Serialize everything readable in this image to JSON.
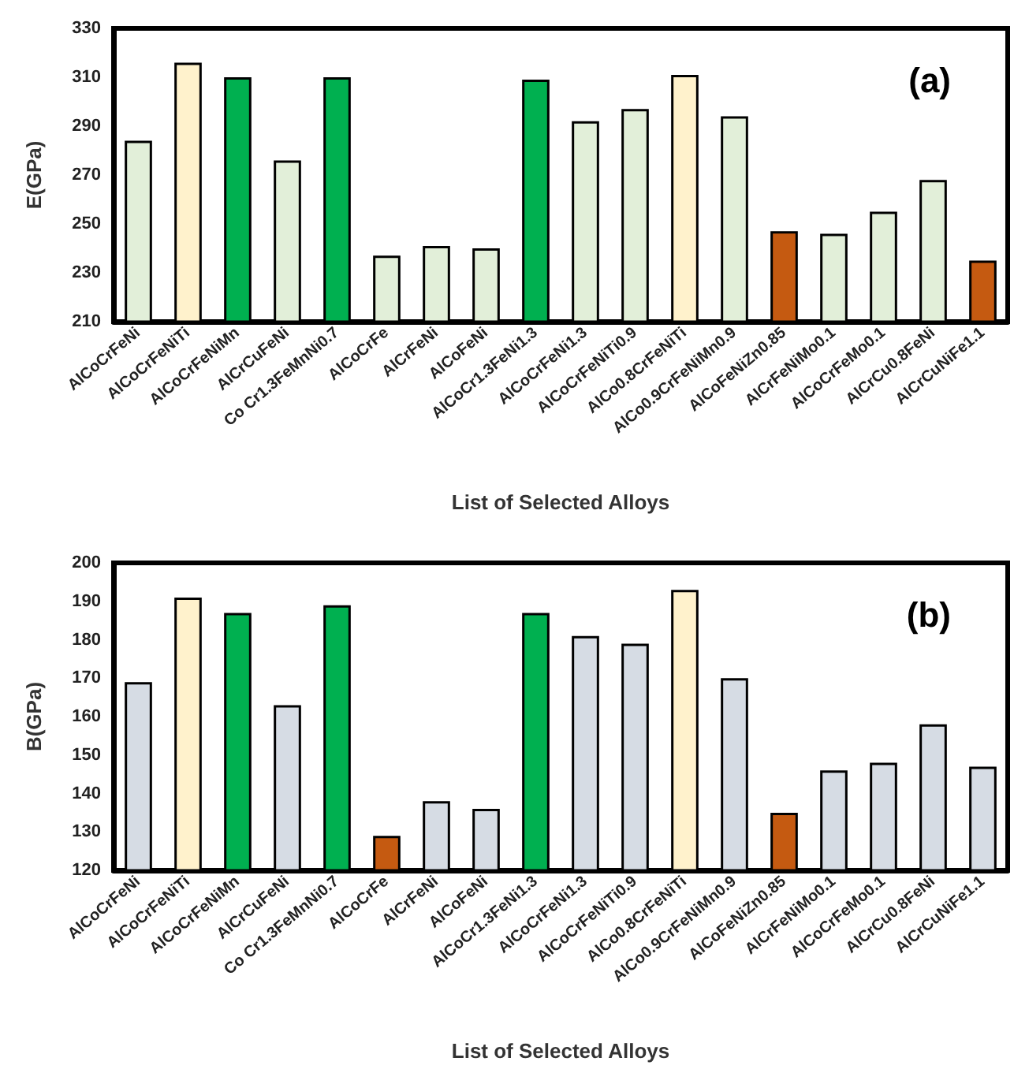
{
  "chart_data": [
    {
      "type": "bar",
      "xlabel": "List of Selected Alloys",
      "ylabel": "E(GPa)",
      "annotations": [
        "(a)"
      ],
      "categories": [
        "AlCoCrFeNi",
        "AlCoCrFeNiTi",
        "AlCoCrFeNiMn",
        "AlCrCuFeNi",
        "Co Cr1.3FeMnNi0.7",
        "AlCoCrFe",
        "AlCrFeNi",
        "AlCoFeNi",
        "AlCoCr1.3FeNi1.3",
        "AlCoCrFeNi1.3",
        "AlCoCrFeNiTi0.9",
        "AlCo0.8CrFeNiTi",
        "AlCo0.9CrFeNiMn0.9",
        "AlCoFeNiZn0.85",
        "AlCrFeNiMo0.1",
        "AlCoCrFeMo0.1",
        "AlCrCu0.8FeNi",
        "AlCrCuNiFe1.1"
      ],
      "values": [
        284,
        316,
        310,
        276,
        310,
        237,
        241,
        240,
        309,
        292,
        297,
        311,
        294,
        247,
        246,
        255,
        268,
        235
      ],
      "colors": [
        "#e2efd9",
        "#fff2cc",
        "#00b050",
        "#e2efd9",
        "#00b050",
        "#e2efd9",
        "#e2efd9",
        "#e2efd9",
        "#00b050",
        "#e2efd9",
        "#e2efd9",
        "#fff2cc",
        "#e2efd9",
        "#c55a11",
        "#e2efd9",
        "#e2efd9",
        "#e2efd9",
        "#c55a11"
      ],
      "ylim": [
        210,
        330
      ],
      "yticks": [
        210,
        230,
        250,
        270,
        290,
        310,
        330
      ]
    },
    {
      "type": "bar",
      "xlabel": "List of Selected Alloys",
      "ylabel": "B(GPa)",
      "annotations": [
        "(b)"
      ],
      "categories": [
        "AlCoCrFeNi",
        "AlCoCrFeNiTi",
        "AlCoCrFeNiMn",
        "AlCrCuFeNi",
        "Co Cr1.3FeMnNi0.7",
        "AlCoCrFe",
        "AlCrFeNi",
        "AlCoFeNi",
        "AlCoCr1.3FeNi1.3",
        "AlCoCrFeNi1.3",
        "AlCoCrFeNiTi0.9",
        "AlCo0.8CrFeNiTi",
        "AlCo0.9CrFeNiMn0.9",
        "AlCoFeNiZn0.85",
        "AlCrFeNiMo0.1",
        "AlCoCrFeMo0.1",
        "AlCrCu0.8FeNi",
        "AlCrCuNiFe1.1"
      ],
      "values": [
        169,
        191,
        187,
        163,
        189,
        129,
        138,
        136,
        187,
        181,
        179,
        193,
        170,
        135,
        146,
        148,
        158,
        147
      ],
      "colors": [
        "#d6dce4",
        "#fff2cc",
        "#00b050",
        "#d6dce4",
        "#00b050",
        "#c55a11",
        "#d6dce4",
        "#d6dce4",
        "#00b050",
        "#d6dce4",
        "#d6dce4",
        "#fff2cc",
        "#d6dce4",
        "#c55a11",
        "#d6dce4",
        "#d6dce4",
        "#d6dce4",
        "#d6dce4"
      ],
      "ylim": [
        120,
        200
      ],
      "yticks": [
        120,
        130,
        140,
        150,
        160,
        170,
        180,
        190,
        200
      ]
    }
  ]
}
